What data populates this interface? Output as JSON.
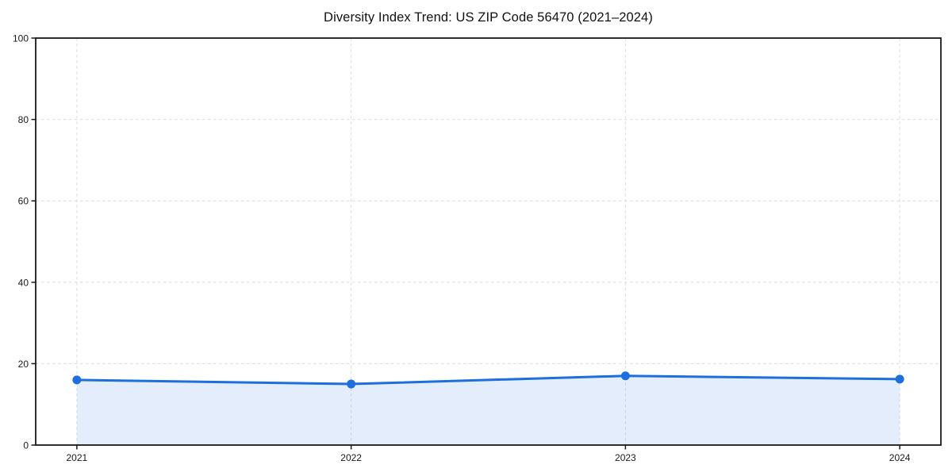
{
  "chart_data": {
    "type": "line",
    "title": "Diversity Index Trend: US ZIP Code 56470 (2021–2024)",
    "categories": [
      "2021",
      "2022",
      "2023",
      "2024"
    ],
    "values": [
      16,
      15,
      17,
      16.2
    ],
    "xlabel": "",
    "ylabel": "",
    "ylim": [
      0,
      100
    ],
    "yticks": [
      0,
      20,
      40,
      60,
      80,
      100
    ],
    "grid": true,
    "grid_style": "dashed",
    "legend": false,
    "marker": "circle",
    "area_fill": true,
    "colors": {
      "line": "#1d6fdd",
      "marker": "#1d6fdd",
      "fill": "rgba(29,111,221,0.12)",
      "grid": "#dcdcdc",
      "axis": "#1a1a1a",
      "text": "#1a1a1a",
      "background": "#ffffff"
    }
  }
}
